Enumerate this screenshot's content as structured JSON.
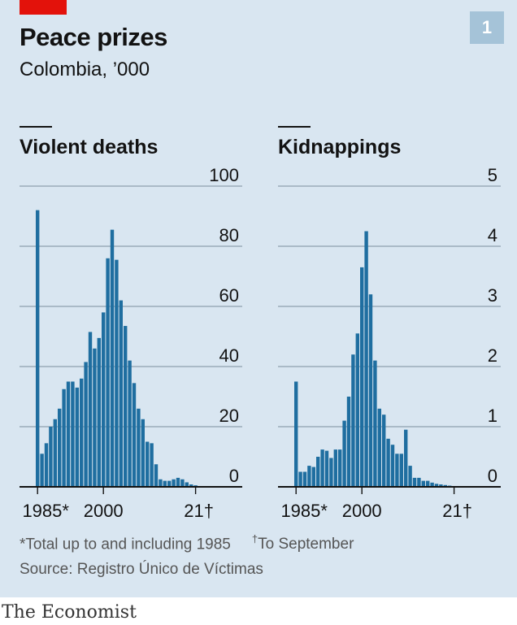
{
  "title": "Peace prizes",
  "subtitle": "Colombia, ’000",
  "badge": "1",
  "footnote_total": "*Total up to and including 1985",
  "footnote_dagger_mark": "†",
  "footnote_september": "To September",
  "source": "Source: Registro Único de Víctimas",
  "brand": "The Economist",
  "colors": {
    "bar": "#1f6ea0",
    "background": "#d9e6f1",
    "grid": "#8ea0ae",
    "accent": "#e3120b",
    "badge": "#a5c3d8"
  },
  "chart_data": [
    {
      "type": "bar",
      "title": "Violent deaths",
      "x": [
        "1985*",
        "1986",
        "1987",
        "1988",
        "1989",
        "1990",
        "1991",
        "1992",
        "1993",
        "1994",
        "1995",
        "1996",
        "1997",
        "1998",
        "1999",
        "2000",
        "2001",
        "2002",
        "2003",
        "2004",
        "2005",
        "2006",
        "2007",
        "2008",
        "2009",
        "2010",
        "2011",
        "2012",
        "2013",
        "2014",
        "2015",
        "2016",
        "2017",
        "2018",
        "2019",
        "2020",
        "2021†"
      ],
      "values": [
        92,
        11,
        14.5,
        20,
        22.5,
        26,
        32.5,
        35,
        35,
        33,
        36,
        41.5,
        51.5,
        46,
        49.5,
        58,
        76,
        85.5,
        75.5,
        62,
        53.5,
        42,
        34.5,
        26,
        22.5,
        15,
        14.5,
        7.5,
        2.5,
        2,
        2,
        2.5,
        3,
        2.5,
        1.5,
        0.8,
        0.5
      ],
      "x_tick_labels": [
        "1985*",
        "2000",
        "21†"
      ],
      "y_ticks": [
        "100",
        "80",
        "60",
        "40",
        "20",
        "0"
      ],
      "ylim": [
        0,
        100
      ],
      "grid": true
    },
    {
      "type": "bar",
      "title": "Kidnappings",
      "x": [
        "1985*",
        "1986",
        "1987",
        "1988",
        "1989",
        "1990",
        "1991",
        "1992",
        "1993",
        "1994",
        "1995",
        "1996",
        "1997",
        "1998",
        "1999",
        "2000",
        "2001",
        "2002",
        "2003",
        "2004",
        "2005",
        "2006",
        "2007",
        "2008",
        "2009",
        "2010",
        "2011",
        "2012",
        "2013",
        "2014",
        "2015",
        "2016",
        "2017",
        "2018",
        "2019",
        "2020",
        "2021†"
      ],
      "values": [
        1.75,
        0.25,
        0.25,
        0.35,
        0.33,
        0.5,
        0.62,
        0.6,
        0.48,
        0.62,
        0.62,
        1.1,
        1.5,
        2.2,
        2.55,
        3.65,
        4.25,
        3.2,
        2.1,
        1.3,
        1.2,
        0.8,
        0.7,
        0.55,
        0.55,
        0.95,
        0.35,
        0.15,
        0.15,
        0.1,
        0.1,
        0.07,
        0.05,
        0.04,
        0.03,
        0.02,
        0.01
      ],
      "x_tick_labels": [
        "1985*",
        "2000",
        "21†"
      ],
      "y_ticks": [
        "5",
        "4",
        "3",
        "2",
        "1",
        "0"
      ],
      "ylim": [
        0,
        5
      ],
      "grid": true
    }
  ]
}
